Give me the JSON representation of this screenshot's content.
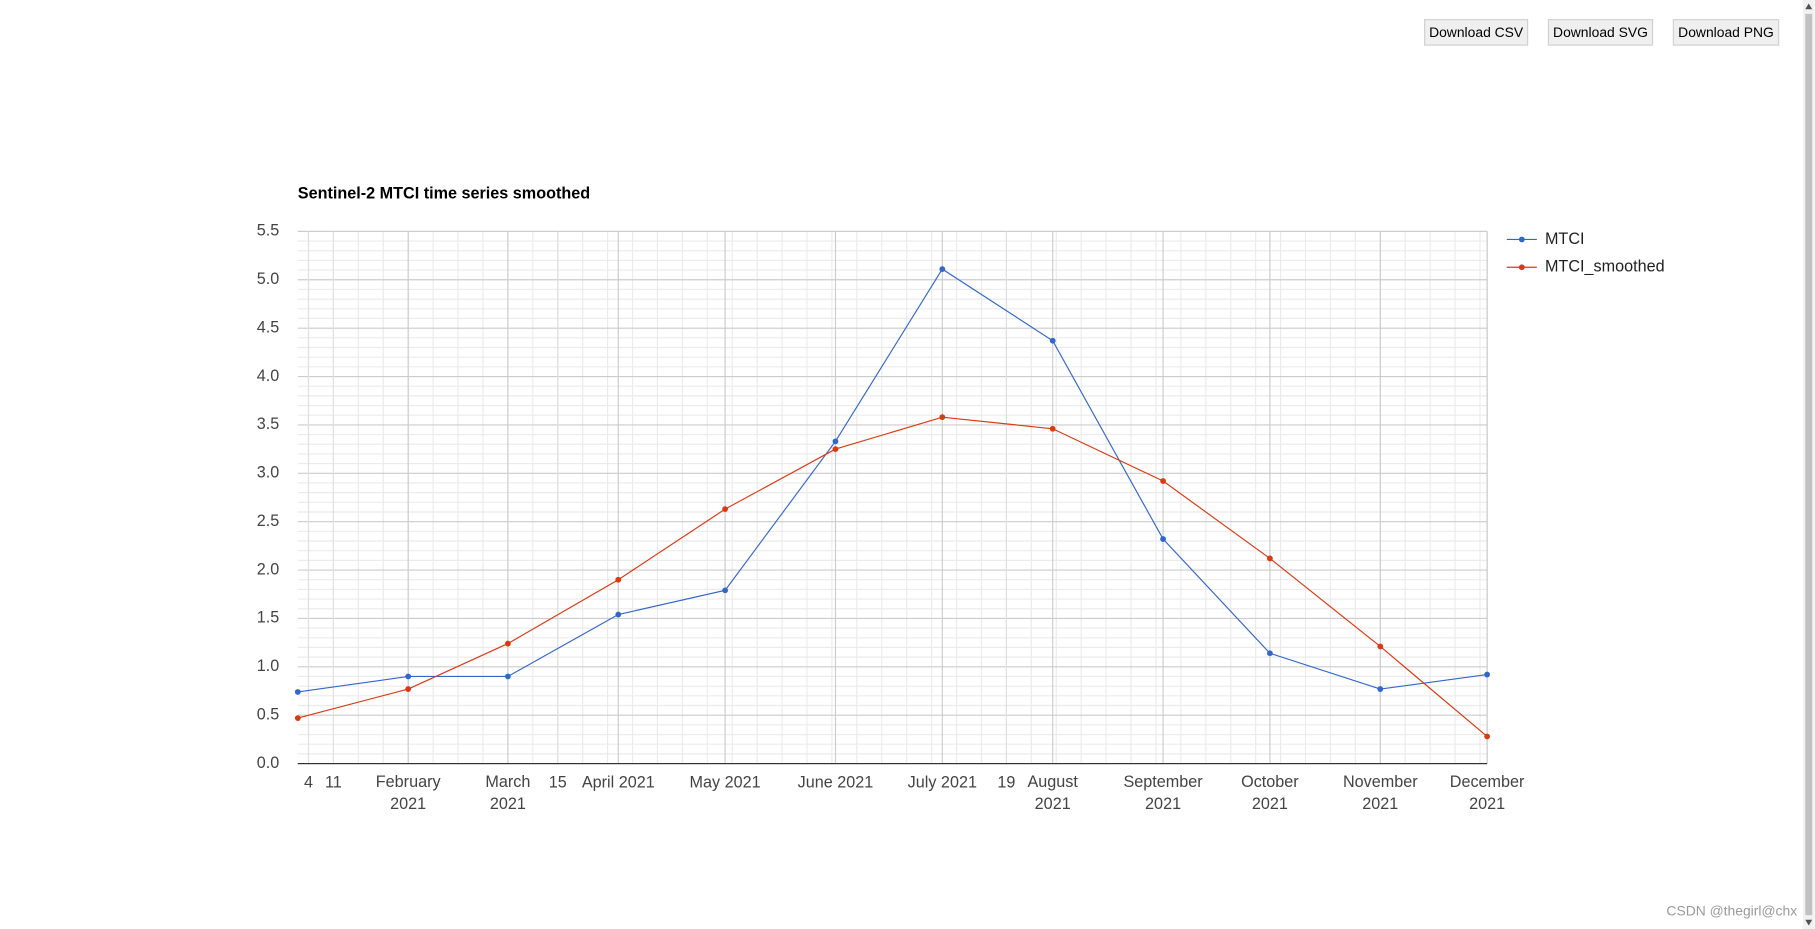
{
  "buttons": [
    "Download CSV",
    "Download SVG",
    "Download PNG"
  ],
  "watermark": "CSDN @thegirl@chx",
  "chart_data": {
    "type": "line",
    "title": "Sentinel-2 MTCI time series smoothed",
    "x": [
      "2021-01-01",
      "2021-02-01",
      "2021-03-01",
      "2021-04-01",
      "2021-05-01",
      "2021-06-01",
      "2021-07-01",
      "2021-08-01",
      "2021-09-01",
      "2021-10-01",
      "2021-11-01",
      "2021-12-01"
    ],
    "series": [
      {
        "name": "MTCI",
        "color": "#3366cc",
        "values": [
          0.74,
          0.9,
          0.9,
          1.54,
          1.79,
          3.33,
          5.11,
          4.37,
          2.32,
          1.14,
          0.77,
          0.92
        ]
      },
      {
        "name": "MTCI_smoothed",
        "color": "#dc3912",
        "values": [
          0.47,
          0.77,
          1.24,
          1.9,
          2.63,
          3.25,
          3.58,
          3.46,
          2.92,
          2.12,
          1.21,
          0.28
        ]
      }
    ],
    "xlim": [
      "2021-01-01",
      "2021-12-01"
    ],
    "xticks": [
      {
        "value": "2021-01-04",
        "label": "4"
      },
      {
        "value": "2021-01-11",
        "label": "11"
      },
      {
        "value": "2021-02-01",
        "label": "February\n2021"
      },
      {
        "value": "2021-03-01",
        "label": "March\n2021"
      },
      {
        "value": "2021-03-15",
        "label": "15"
      },
      {
        "value": "2021-04-01",
        "label": "April 2021"
      },
      {
        "value": "2021-05-01",
        "label": "May 2021"
      },
      {
        "value": "2021-06-01",
        "label": "June 2021"
      },
      {
        "value": "2021-07-01",
        "label": "July 2021"
      },
      {
        "value": "2021-07-19",
        "label": "19"
      },
      {
        "value": "2021-08-01",
        "label": "August\n2021"
      },
      {
        "value": "2021-09-01",
        "label": "September\n2021"
      },
      {
        "value": "2021-10-01",
        "label": "October\n2021"
      },
      {
        "value": "2021-11-01",
        "label": "November\n2021"
      },
      {
        "value": "2021-12-01",
        "label": "December\n2021"
      }
    ],
    "ylim": [
      0,
      5.5
    ],
    "yticks": [
      {
        "value": 0,
        "label": "0.0"
      },
      0.5,
      {
        "value": 1,
        "label": "1.0"
      },
      1.5,
      {
        "value": 2,
        "label": "2.0"
      },
      2.5,
      {
        "value": 3,
        "label": "3.0"
      },
      3.5,
      {
        "value": 4,
        "label": "4.0"
      },
      4.5,
      {
        "value": 5,
        "label": "5.0"
      },
      5.5
    ],
    "grid": true,
    "minor_grid": true,
    "legend": "right"
  }
}
